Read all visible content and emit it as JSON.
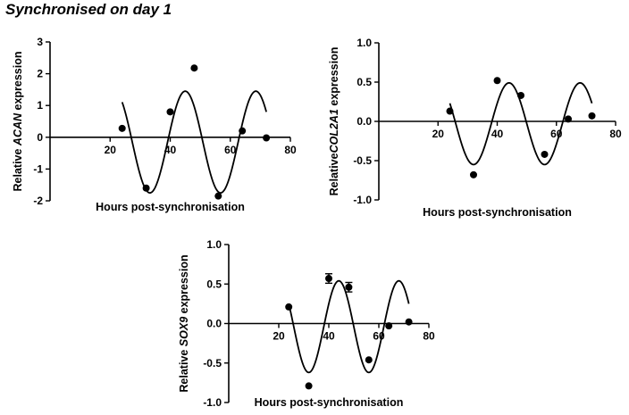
{
  "figure_title": "Synchronised on day 1",
  "chart_data": [
    {
      "id": "acan",
      "type": "scatter",
      "xlabel": "Hours post-synchronisation",
      "ylabel_parts": [
        {
          "text": "Relative ",
          "italic": false
        },
        {
          "text": "ACAN",
          "italic": true
        },
        {
          "text": " expression",
          "italic": false
        }
      ],
      "xlim": [
        0,
        80
      ],
      "ylim": [
        -2,
        3
      ],
      "xticks": [
        20,
        40,
        60,
        80
      ],
      "yticks": [
        -2,
        -1,
        0,
        1,
        2,
        3
      ],
      "ytick_labels": [
        "-2",
        "-1",
        "0",
        "1",
        "2",
        "3"
      ],
      "points": [
        {
          "x": 24,
          "y": 0.28
        },
        {
          "x": 32,
          "y": -1.6
        },
        {
          "x": 40,
          "y": 0.8
        },
        {
          "x": 48,
          "y": 2.18
        },
        {
          "x": 56,
          "y": -1.85
        },
        {
          "x": 64,
          "y": 0.2
        },
        {
          "x": 72,
          "y": -0.02
        }
      ],
      "fit": {
        "mesor": -0.15,
        "amplitude": 1.6,
        "period": 23.5,
        "peak": 45,
        "xrange": [
          24,
          72
        ]
      }
    },
    {
      "id": "col2a1",
      "type": "scatter",
      "xlabel": "Hours post-synchronisation",
      "ylabel_parts": [
        {
          "text": "Relative",
          "italic": false
        },
        {
          "text": "COL2A1",
          "italic": true
        },
        {
          "text": " expression",
          "italic": false
        }
      ],
      "xlim": [
        0,
        80
      ],
      "ylim": [
        -1,
        1
      ],
      "xticks": [
        20,
        40,
        60,
        80
      ],
      "yticks": [
        -1,
        -0.5,
        0,
        0.5,
        1
      ],
      "ytick_labels": [
        "-1.0",
        "-0.5",
        "0.0",
        "0.5",
        "1.0"
      ],
      "points": [
        {
          "x": 24,
          "y": 0.13
        },
        {
          "x": 32,
          "y": -0.68
        },
        {
          "x": 40,
          "y": 0.52
        },
        {
          "x": 48,
          "y": 0.33
        },
        {
          "x": 56,
          "y": -0.42
        },
        {
          "x": 64,
          "y": 0.03
        },
        {
          "x": 72,
          "y": 0.07
        }
      ],
      "fit": {
        "mesor": -0.03,
        "amplitude": 0.52,
        "period": 24,
        "peak": 44,
        "xrange": [
          24,
          72
        ]
      }
    },
    {
      "id": "sox9",
      "type": "scatter",
      "xlabel": "Hours post-synchronisation",
      "ylabel_parts": [
        {
          "text": "Relative ",
          "italic": false
        },
        {
          "text": "SOX9",
          "italic": true
        },
        {
          "text": " expression",
          "italic": false
        }
      ],
      "xlim": [
        0,
        80
      ],
      "ylim": [
        -1,
        1
      ],
      "xticks": [
        20,
        40,
        60,
        80
      ],
      "yticks": [
        -1,
        -0.5,
        0,
        0.5,
        1
      ],
      "ytick_labels": [
        "-1.0",
        "-0.5",
        "0.0",
        "0.5",
        "1.0"
      ],
      "points": [
        {
          "x": 24,
          "y": 0.21
        },
        {
          "x": 32,
          "y": -0.79
        },
        {
          "x": 40,
          "y": 0.57,
          "err": 0.06
        },
        {
          "x": 48,
          "y": 0.46,
          "err": 0.06
        },
        {
          "x": 56,
          "y": -0.46
        },
        {
          "x": 64,
          "y": -0.03
        },
        {
          "x": 72,
          "y": 0.02
        }
      ],
      "fit": {
        "mesor": -0.04,
        "amplitude": 0.58,
        "period": 24,
        "peak": 44,
        "xrange": [
          24,
          72
        ]
      }
    }
  ]
}
